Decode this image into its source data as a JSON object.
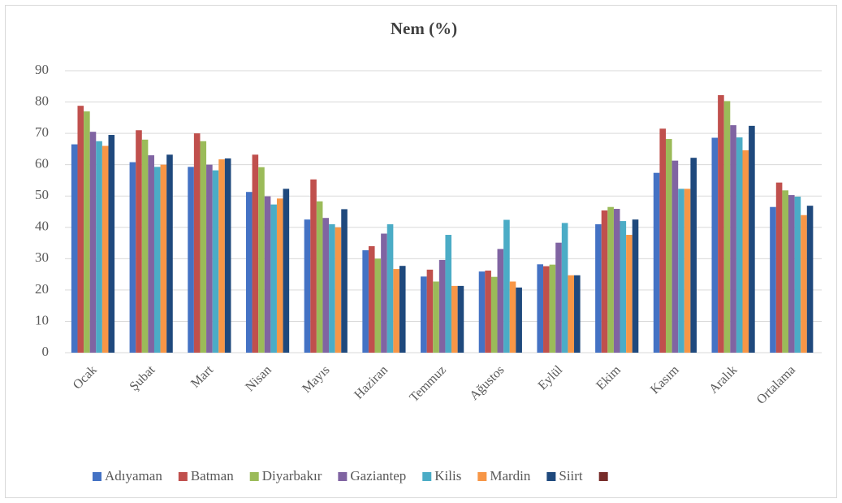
{
  "chart_data": {
    "type": "bar",
    "title": "Nem (%)",
    "categories": [
      "Ocak",
      "Şubat",
      "Mart",
      "Nisan",
      "Mayıs",
      "Haziran",
      "Temmuz",
      "Ağustos",
      "Eylül",
      "Ekim",
      "Kasım",
      "Aralık",
      "Ortalama"
    ],
    "series": [
      {
        "name": "Adıyaman",
        "color": "#4472c4",
        "values": [
          66.5,
          60.8,
          59.3,
          51.3,
          42.5,
          32.7,
          24.3,
          25.9,
          28.2,
          41,
          57.4,
          68.6,
          46.5
        ]
      },
      {
        "name": "Batman",
        "color": "#c0504d",
        "values": [
          78.8,
          71,
          70,
          63.2,
          55.3,
          34,
          26.5,
          26.2,
          27.6,
          45.4,
          71.5,
          82.2,
          54.3
        ]
      },
      {
        "name": "Diyarbakır",
        "color": "#9bbb59",
        "values": [
          77,
          68,
          67.5,
          59.2,
          48.3,
          30,
          22.7,
          24.2,
          28.1,
          46.5,
          68.2,
          80.3,
          51.8
        ]
      },
      {
        "name": "Gaziantep",
        "color": "#8064a2",
        "values": [
          70.5,
          63,
          60,
          49.9,
          43,
          38,
          29.6,
          33.1,
          35.1,
          45.9,
          61.3,
          72.6,
          50.3
        ]
      },
      {
        "name": "Kilis",
        "color": "#4bacc6",
        "values": [
          67.5,
          59.3,
          58.2,
          47.3,
          41,
          41,
          37.6,
          42.4,
          41.4,
          42,
          52.3,
          68.7,
          49.8
        ]
      },
      {
        "name": "Mardin",
        "color": "#f79646",
        "values": [
          66,
          60,
          61.7,
          49.2,
          40,
          26.7,
          21.3,
          22.7,
          24.7,
          37.6,
          52.3,
          64.6,
          43.9
        ]
      },
      {
        "name": "Siirt",
        "color": "#1f497d",
        "values": [
          69.5,
          63.2,
          62,
          52.3,
          45.8,
          27.7,
          21.3,
          20.8,
          24.7,
          42.5,
          62.2,
          72.4,
          46.9
        ]
      }
    ],
    "ylim": [
      0,
      90
    ],
    "yticks": [
      0,
      10,
      20,
      30,
      40,
      50,
      60,
      70,
      80,
      90
    ],
    "grid": true,
    "legend": "bottom"
  }
}
